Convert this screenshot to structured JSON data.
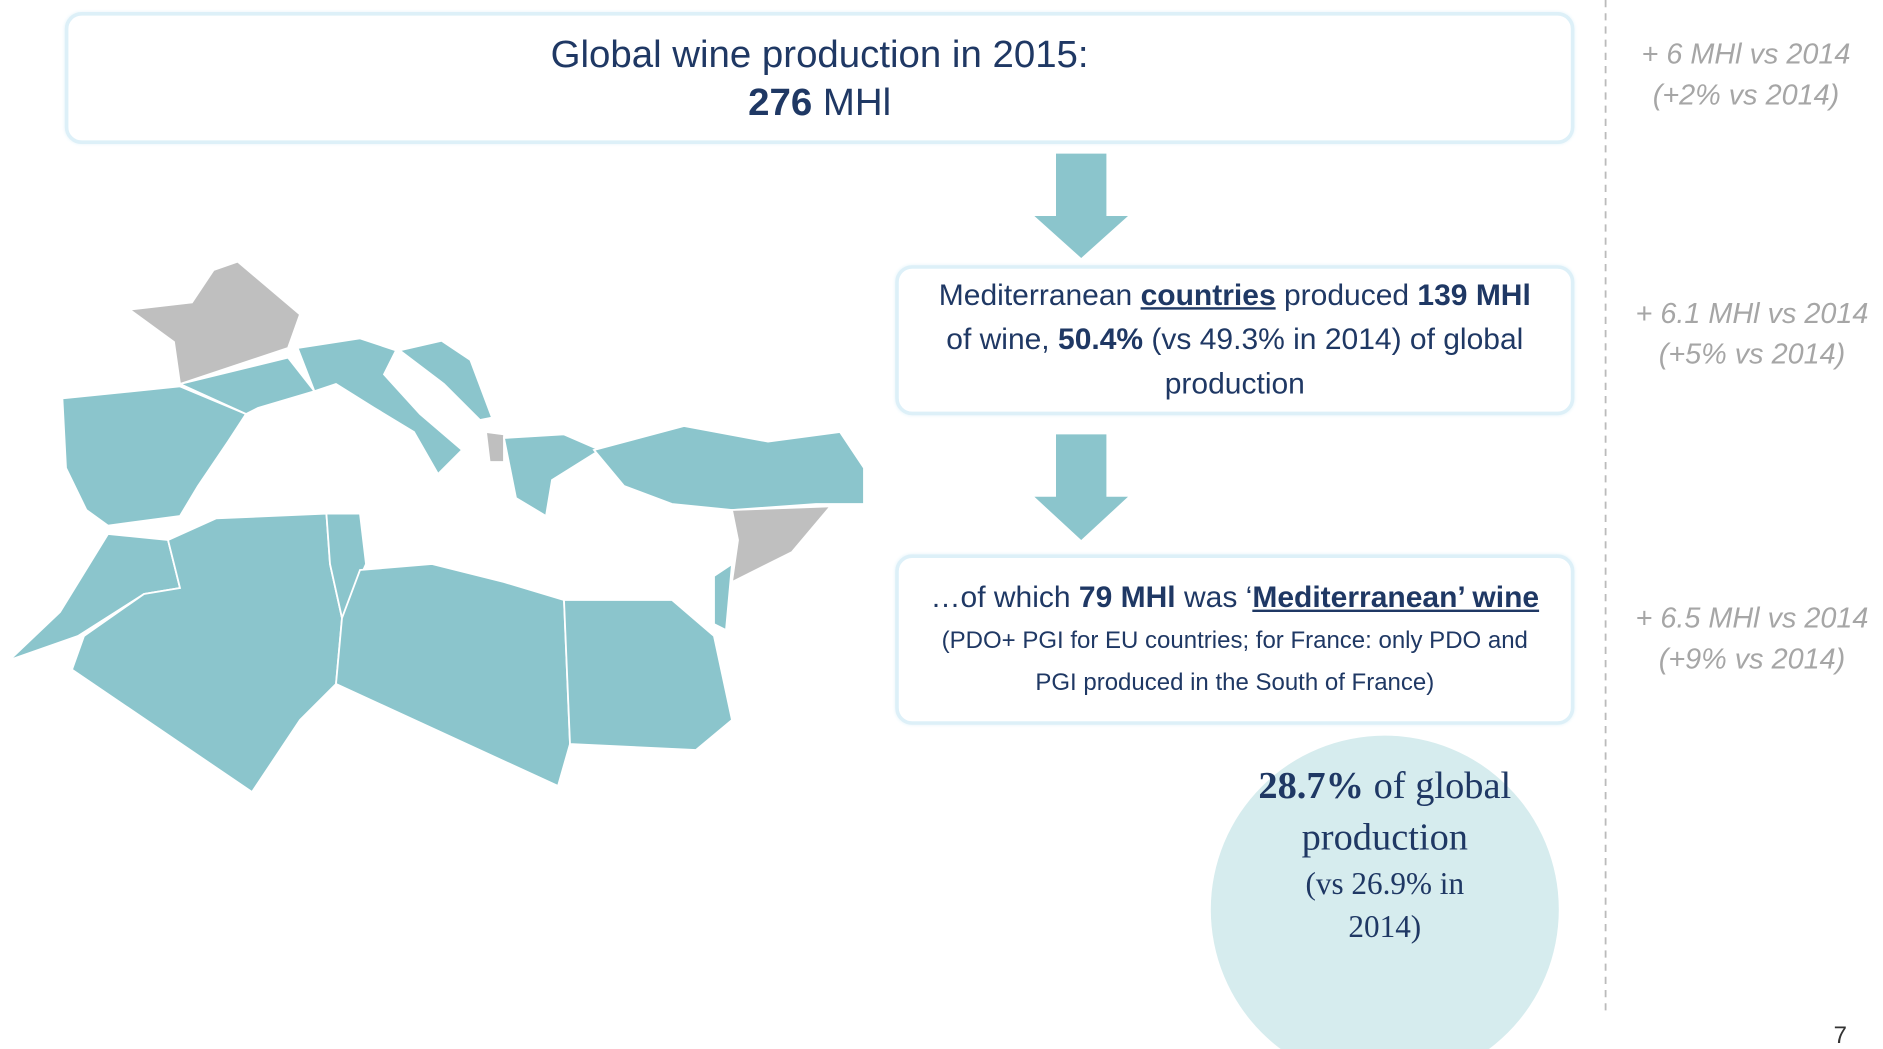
{
  "box1": {
    "line1": "Global wine production in 2015:",
    "value": "276",
    "unit": "MHl"
  },
  "box2": {
    "parts": [
      "Mediterranean",
      "countries",
      "produced",
      "139 MHl",
      "of wine,",
      "50.4%",
      "(vs 49.3% in 2014) of global production"
    ]
  },
  "box3": {
    "parts": [
      "…of which",
      "79 MHl",
      "was ‘",
      "Mediterranean’ wine",
      "(PDO+ PGI for EU countries; for France: only PDO and PGI produced in the South of France)"
    ]
  },
  "circle": {
    "value": "28.7%",
    "text": "of global production",
    "note": "(vs 26.9% in 2014)"
  },
  "side": [
    [
      "+ 6 MHl vs 2014",
      "(+2% vs 2014)"
    ],
    [
      "+ 6.1 MHl vs 2014",
      "(+5% vs 2014)"
    ],
    [
      "+ 6.5 MHl vs 2014",
      "(+9% vs 2014)"
    ]
  ],
  "page_number": "7"
}
